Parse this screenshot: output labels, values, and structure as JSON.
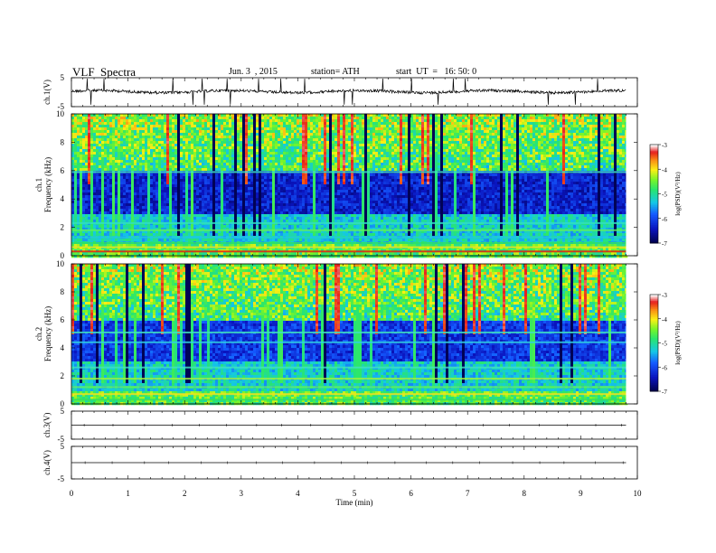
{
  "header": {
    "title": "VLF  Spectra",
    "date": "Jun. 3  , 2015",
    "station": "station= ATH",
    "start_time": "start  UT  =   16: 50: 0"
  },
  "chart_data": [
    {
      "type": "line",
      "name": "ch1-waveform",
      "ylabel": "ch.1(V)",
      "yticks": [
        "5",
        "-5"
      ],
      "ylim": [
        -5,
        5
      ],
      "approx_level": 0.2,
      "noise_amplitude": 0.6
    },
    {
      "type": "heatmap",
      "name": "ch1-spectrogram",
      "ylabel_top": "ch.1",
      "ylabel": "Frequency  (kHz)",
      "yticks": [
        "10",
        "8",
        "6",
        "4",
        "2",
        "0"
      ],
      "ylim": [
        0,
        10
      ],
      "bands_khz": [
        {
          "freq": 0.3,
          "color": "#e02010"
        },
        {
          "freq": 0.6,
          "color": "#f0e020"
        },
        {
          "freq": 0.9,
          "color": "#30e060"
        },
        {
          "freq": 1.3,
          "color": "#20c8e0"
        },
        {
          "freq": 1.8,
          "color": "#60f060"
        },
        {
          "freq": 2.3,
          "color": "#30e0c0"
        },
        {
          "freq": 5.9,
          "color": "#40e0c0"
        }
      ],
      "colorbar": {
        "label": "log(PSD)(V²/Hz)",
        "ticks": [
          "-3",
          "-4",
          "-5",
          "-6",
          "-7"
        ],
        "range": [
          -7,
          -3
        ]
      }
    },
    {
      "type": "heatmap",
      "name": "ch2-spectrogram",
      "ylabel_top": "ch.2",
      "ylabel": "Frequency  (kHz)",
      "yticks": [
        "10",
        "8",
        "6",
        "4",
        "2",
        "0"
      ],
      "ylim": [
        0,
        10
      ],
      "bands_khz": [
        {
          "freq": 0.3,
          "color": "#30e060"
        },
        {
          "freq": 0.7,
          "color": "#f0e020"
        },
        {
          "freq": 1.2,
          "color": "#60f060"
        },
        {
          "freq": 1.8,
          "color": "#a0f040"
        },
        {
          "freq": 2.6,
          "color": "#40e0c0"
        },
        {
          "freq": 4.4,
          "color": "#30d0e0"
        },
        {
          "freq": 5.1,
          "color": "#40e0c0"
        }
      ],
      "colorbar": {
        "label": "log(PSD)(V²/Hz)",
        "ticks": [
          "-3",
          "-4",
          "-5",
          "-6",
          "-7"
        ],
        "range": [
          -7,
          -3
        ]
      }
    },
    {
      "type": "line",
      "name": "ch3-waveform",
      "ylabel": "ch.3(V)",
      "yticks": [
        "5",
        "-5"
      ],
      "ylim": [
        -5,
        5
      ],
      "approx_level": 0
    },
    {
      "type": "line",
      "name": "ch4-waveform",
      "ylabel": "ch.4(V)",
      "yticks": [
        "5",
        "-5"
      ],
      "ylim": [
        -5,
        5
      ],
      "approx_level": 0
    }
  ],
  "x_axis": {
    "label": "Time  (min)",
    "ticks": [
      "0",
      "1",
      "2",
      "3",
      "4",
      "5",
      "6",
      "7",
      "8",
      "9",
      "10"
    ],
    "range": [
      0,
      10
    ],
    "data_end": 9.8
  }
}
